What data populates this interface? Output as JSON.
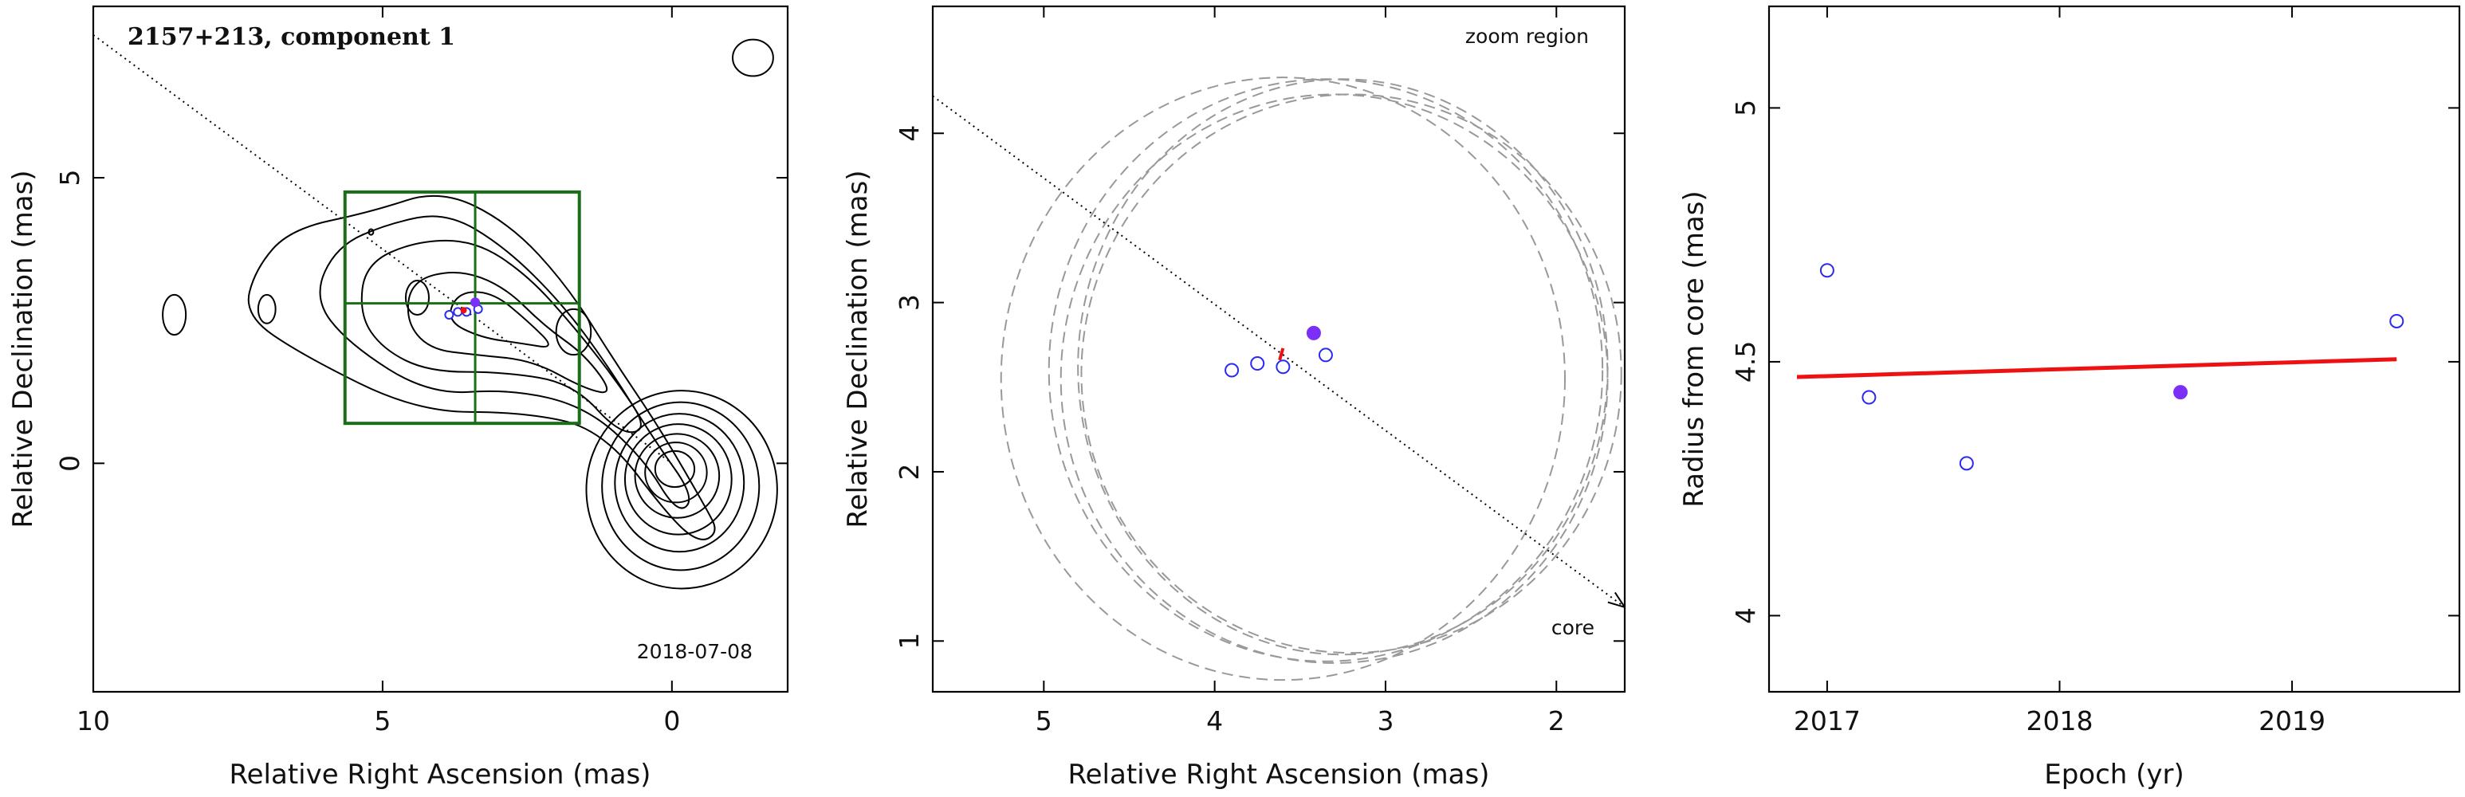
{
  "chart_data": [
    {
      "type": "contour",
      "title": "2157+213, component 1",
      "annotation": "2018-07-08",
      "xlabel": "Relative Right Ascension (mas)",
      "ylabel": "Relative Declination (mas)",
      "xlim": [
        10,
        -2
      ],
      "ylim": [
        -4,
        8
      ],
      "xticks": [
        10,
        5,
        0
      ],
      "yticks": [
        5,
        0
      ],
      "zoom_box": {
        "x": [
          5.65,
          1.6
        ],
        "y": [
          0.7,
          4.75
        ]
      },
      "crosshair": {
        "x": 3.4,
        "y": 2.8
      },
      "direction_line": {
        "from": [
          10,
          7.5
        ],
        "to": [
          0,
          0
        ]
      },
      "component_positions": [
        {
          "x": 3.85,
          "y": 2.6,
          "filled": false
        },
        {
          "x": 3.7,
          "y": 2.65,
          "filled": false
        },
        {
          "x": 3.55,
          "y": 2.65,
          "filled": false
        },
        {
          "x": 3.35,
          "y": 2.7,
          "filled": false
        },
        {
          "x": 3.4,
          "y": 2.82,
          "filled": true
        }
      ],
      "colors": {
        "contour": "#000000",
        "box": "#1a6e1a",
        "open_marker": "#2a2af0",
        "filled_marker": "#7b2ff7",
        "fit": "#ee1111"
      }
    },
    {
      "type": "scatter",
      "title": "",
      "annotations": [
        "zoom region",
        "core"
      ],
      "xlabel": "Relative Right Ascension (mas)",
      "ylabel": "Relative Declination (mas)",
      "xlim": [
        5.65,
        1.6
      ],
      "ylim": [
        0.7,
        4.75
      ],
      "xticks": [
        5,
        4,
        3,
        2
      ],
      "yticks": [
        1,
        2,
        3,
        4
      ],
      "direction_line": {
        "from": [
          5.65,
          4.22
        ],
        "to": [
          1.6,
          1.2
        ],
        "arrow": true
      },
      "points": [
        {
          "x": 3.9,
          "y": 2.6,
          "filled": false
        },
        {
          "x": 3.75,
          "y": 2.64,
          "filled": false
        },
        {
          "x": 3.6,
          "y": 2.62,
          "filled": false
        },
        {
          "x": 3.35,
          "y": 2.69,
          "filled": false
        },
        {
          "x": 3.42,
          "y": 2.82,
          "filled": true
        }
      ],
      "fit_segment": {
        "from": [
          3.62,
          2.66
        ],
        "to": [
          3.6,
          2.73
        ]
      },
      "beam_ellipses": [
        {
          "cx": 3.6,
          "cy": 2.55,
          "rx": 1.65,
          "ry": 1.78
        },
        {
          "cx": 3.35,
          "cy": 2.6,
          "rx": 1.62,
          "ry": 1.72
        },
        {
          "cx": 3.3,
          "cy": 2.55,
          "rx": 1.6,
          "ry": 1.68
        },
        {
          "cx": 3.25,
          "cy": 2.62,
          "rx": 1.55,
          "ry": 1.7
        },
        {
          "cx": 3.2,
          "cy": 2.58,
          "rx": 1.58,
          "ry": 1.65
        }
      ]
    },
    {
      "type": "scatter",
      "title": "",
      "xlabel": "Epoch (yr)",
      "ylabel": "Radius from core (mas)",
      "xlim": [
        2016.75,
        2019.72
      ],
      "ylim": [
        3.85,
        5.2
      ],
      "xticks": [
        2017,
        2018,
        2019
      ],
      "yticks": [
        4,
        4.5,
        5
      ],
      "points": [
        {
          "x": 2017.0,
          "y": 4.68,
          "filled": false
        },
        {
          "x": 2017.18,
          "y": 4.43,
          "filled": false
        },
        {
          "x": 2017.6,
          "y": 4.3,
          "filled": false
        },
        {
          "x": 2018.52,
          "y": 4.44,
          "filled": true
        },
        {
          "x": 2019.45,
          "y": 4.58,
          "filled": false
        }
      ],
      "fit_line": {
        "x": [
          2016.87,
          2019.45
        ],
        "y": [
          4.47,
          4.505
        ]
      }
    }
  ]
}
